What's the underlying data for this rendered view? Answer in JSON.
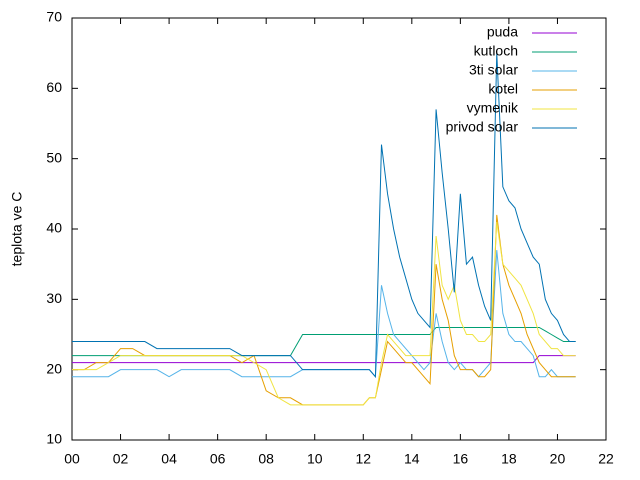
{
  "chart_data": {
    "type": "line",
    "ylabel": "teplota ve C",
    "legend": "top-right",
    "xlim": [
      0,
      22
    ],
    "ylim": [
      10,
      70
    ],
    "xticks": [
      {
        "value": 0,
        "label": "00"
      },
      {
        "value": 2,
        "label": "02"
      },
      {
        "value": 4,
        "label": "04"
      },
      {
        "value": 6,
        "label": "06"
      },
      {
        "value": 8,
        "label": "08"
      },
      {
        "value": 10,
        "label": "10"
      },
      {
        "value": 12,
        "label": "12"
      },
      {
        "value": 14,
        "label": "14"
      },
      {
        "value": 16,
        "label": "16"
      },
      {
        "value": 18,
        "label": "18"
      },
      {
        "value": 20,
        "label": "20"
      },
      {
        "value": 22,
        "label": "22"
      }
    ],
    "yticks": [
      10,
      20,
      30,
      40,
      50,
      60,
      70
    ],
    "x": [
      0,
      0.5,
      1,
      1.5,
      2,
      2.5,
      3,
      3.5,
      4,
      4.5,
      5,
      5.5,
      6,
      6.5,
      7,
      7.5,
      8,
      8.5,
      9,
      9.5,
      10,
      10.5,
      11,
      11.5,
      12,
      12.25,
      12.5,
      12.75,
      13,
      13.25,
      13.5,
      13.75,
      14,
      14.25,
      14.5,
      14.75,
      15,
      15.25,
      15.5,
      15.75,
      16,
      16.25,
      16.5,
      16.75,
      17,
      17.25,
      17.5,
      17.75,
      18,
      18.25,
      18.5,
      18.75,
      19,
      19.25,
      19.5,
      19.75,
      20,
      20.25,
      20.5,
      20.75
    ],
    "series": [
      {
        "name": "puda",
        "color": "#9400d3",
        "values": [
          21,
          21,
          21,
          21,
          21,
          21,
          21,
          21,
          21,
          21,
          21,
          21,
          21,
          21,
          21,
          21,
          21,
          21,
          21,
          21,
          21,
          21,
          21,
          21,
          21,
          21,
          21,
          21,
          21,
          21,
          21,
          21,
          21,
          21,
          21,
          21,
          21,
          21,
          21,
          21,
          21,
          21,
          21,
          21,
          21,
          21,
          21,
          21,
          21,
          21,
          21,
          21,
          21,
          22,
          22,
          22,
          22,
          22,
          22,
          22
        ]
      },
      {
        "name": "kutloch",
        "color": "#009e73",
        "values": [
          22,
          22,
          22,
          22,
          22,
          22,
          22,
          22,
          22,
          22,
          22,
          22,
          22,
          22,
          22,
          22,
          22,
          22,
          22,
          25,
          25,
          25,
          25,
          25,
          25,
          25,
          25,
          25,
          25,
          25,
          25,
          25,
          25,
          25,
          25,
          25,
          26,
          26,
          26,
          26,
          26,
          26,
          26,
          26,
          26,
          26,
          26,
          26,
          26,
          26,
          26,
          26,
          26,
          26,
          25.5,
          25,
          24.5,
          24,
          24,
          24
        ]
      },
      {
        "name": "3ti solar",
        "color": "#56b4e9",
        "values": [
          19,
          19,
          19,
          19,
          20,
          20,
          20,
          20,
          19,
          20,
          20,
          20,
          20,
          20,
          19,
          19,
          19,
          19,
          19,
          20,
          20,
          20,
          20,
          20,
          20,
          20,
          19,
          32,
          28,
          25,
          24,
          23,
          22,
          21,
          20,
          21,
          28,
          24,
          21,
          20,
          21,
          20,
          20,
          19,
          20,
          21,
          37,
          28,
          25,
          24,
          24,
          23,
          22,
          19,
          19,
          20,
          19,
          19,
          19,
          19
        ]
      },
      {
        "name": "kotel",
        "color": "#e69f00",
        "values": [
          20,
          20,
          21,
          21,
          23,
          23,
          22,
          22,
          22,
          22,
          22,
          22,
          22,
          22,
          21,
          22,
          17,
          16,
          16,
          15,
          15,
          15,
          15,
          15,
          15,
          16,
          16,
          20,
          24,
          23,
          22,
          21,
          21,
          20,
          19,
          18,
          35,
          30,
          27,
          22,
          20,
          20,
          20,
          19,
          19,
          20,
          42,
          35,
          32,
          30,
          28,
          25,
          23,
          21,
          20,
          19,
          19,
          19,
          19,
          19
        ]
      },
      {
        "name": "vymenik",
        "color": "#f0e442",
        "values": [
          20,
          20,
          20,
          21,
          22,
          22,
          22,
          22,
          22,
          22,
          22,
          22,
          22,
          22,
          22,
          21,
          20,
          16,
          15,
          15,
          15,
          15,
          15,
          15,
          15,
          16,
          16,
          21,
          25,
          24,
          23,
          22,
          22,
          22,
          22,
          22,
          39,
          32,
          30,
          32,
          27,
          25,
          25,
          24,
          24,
          25,
          41,
          35,
          34,
          33,
          32,
          30,
          28,
          25,
          24,
          23,
          23,
          22,
          22,
          22
        ]
      },
      {
        "name": "privod solar",
        "color": "#0072b2",
        "values": [
          24,
          24,
          24,
          24,
          24,
          24,
          24,
          23,
          23,
          23,
          23,
          23,
          23,
          23,
          22,
          22,
          22,
          22,
          22,
          20,
          20,
          20,
          20,
          20,
          20,
          20,
          19,
          52,
          45,
          40,
          36,
          33,
          30,
          28,
          27,
          26,
          57,
          48,
          40,
          31,
          45,
          35,
          36,
          32,
          29,
          27,
          65,
          46,
          44,
          43,
          40,
          38,
          36,
          35,
          30,
          28,
          27,
          25,
          24,
          24
        ]
      }
    ]
  }
}
